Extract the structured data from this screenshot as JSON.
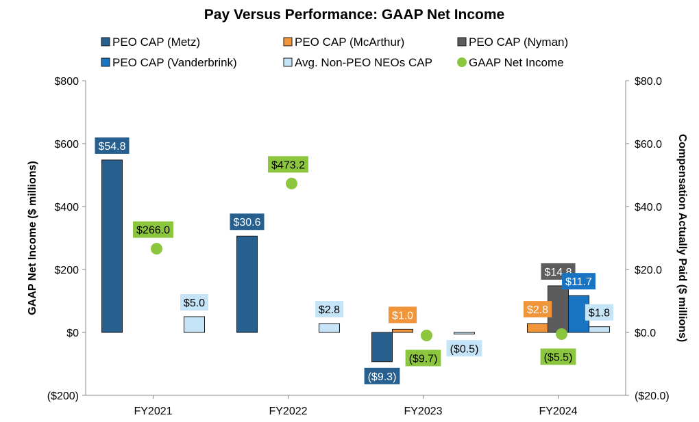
{
  "chart_data": {
    "type": "bar",
    "title": "Pay Versus Performance:  GAAP Net Income",
    "categories": [
      "FY2021",
      "FY2022",
      "FY2023",
      "FY2024"
    ],
    "y_left": {
      "label": "GAAP Net Income ($ millions)",
      "min": -200,
      "max": 800,
      "ticks": [
        -200,
        0,
        200,
        400,
        600,
        800
      ],
      "tick_labels": [
        "($200)",
        "$0",
        "$200",
        "$400",
        "$600",
        "$800"
      ]
    },
    "y_right": {
      "label": "Compensation Actually Paid ($ millions)",
      "min": -20,
      "max": 80,
      "ticks": [
        -20,
        0,
        20,
        40,
        60,
        80
      ],
      "tick_labels": [
        "($20.0)",
        "$0.0",
        "$20.0",
        "$40.0",
        "$60.0",
        "$80.0"
      ]
    },
    "series": [
      {
        "name": "PEO CAP (Metz)",
        "kind": "bar",
        "axis": "right",
        "color": "#27608f",
        "label_text_color": "#ffffff",
        "values": [
          54.8,
          30.6,
          -9.3,
          null
        ],
        "labels": [
          "$54.8",
          "$30.6",
          "($9.3)",
          null
        ]
      },
      {
        "name": "PEO CAP (McArthur)",
        "kind": "bar",
        "axis": "right",
        "color": "#f0953a",
        "label_text_color": "#ffffff",
        "values": [
          null,
          null,
          1.0,
          2.8
        ],
        "labels": [
          null,
          null,
          "$1.0",
          "$2.8"
        ]
      },
      {
        "name": "PEO CAP (Nyman)",
        "kind": "bar",
        "axis": "right",
        "color": "#5c5c5c",
        "label_text_color": "#ffffff",
        "values": [
          null,
          null,
          null,
          14.8
        ],
        "labels": [
          null,
          null,
          null,
          "$14.8"
        ]
      },
      {
        "name": "PEO CAP (Vanderbrink)",
        "kind": "bar",
        "axis": "right",
        "color": "#1a74c4",
        "label_text_color": "#ffffff",
        "values": [
          null,
          null,
          null,
          11.7
        ],
        "labels": [
          null,
          null,
          null,
          "$11.7"
        ]
      },
      {
        "name": "Avg. Non-PEO NEOs CAP",
        "kind": "bar",
        "axis": "right",
        "color": "#c6e4f7",
        "label_text_color": "#000000",
        "values": [
          5.0,
          2.8,
          -0.5,
          1.8
        ],
        "labels": [
          "$5.0",
          "$2.8",
          "($0.5)",
          "$1.8"
        ]
      },
      {
        "name": "GAAP Net Income",
        "kind": "point",
        "axis": "left",
        "color": "#8cc63f",
        "label_text_color": "#000000",
        "values": [
          266.0,
          473.2,
          -9.7,
          -5.5
        ],
        "labels": [
          "$266.0",
          "$473.2",
          "($9.7)",
          "($5.5)"
        ]
      }
    ],
    "legend_position": "top"
  }
}
